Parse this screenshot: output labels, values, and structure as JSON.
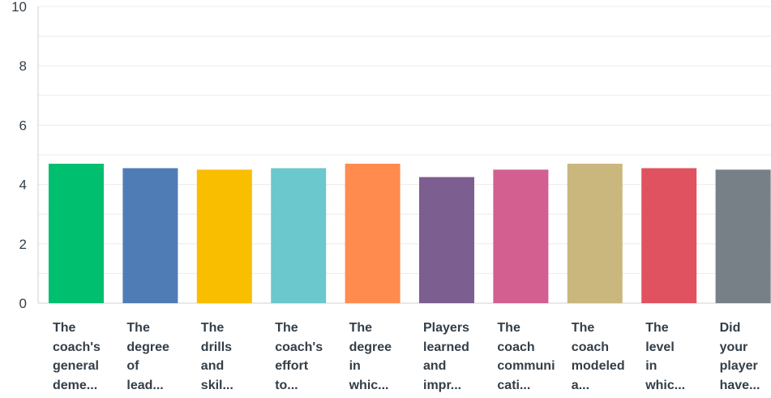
{
  "chart_data": {
    "type": "bar",
    "categories": [
      "The\ncoach's\ngeneral\ndeme...",
      "The\ndegree\nof\nlead...",
      "The\ndrills\nand\nskil...",
      "The\ncoach's\neffort\nto...",
      "The\ndegree\nin\nwhic...",
      "Players\nlearned\nand\nimpr...",
      "The\ncoach\ncommuni\ncati...",
      "The\ncoach\nmodeled\na...",
      "The\nlevel\nin\nwhic...",
      "Did\nyour\nplayer\nhave..."
    ],
    "values": [
      4.7,
      4.55,
      4.5,
      4.55,
      4.7,
      4.25,
      4.5,
      4.7,
      4.55,
      4.5
    ],
    "colors": [
      "#00bf6f",
      "#507cb6",
      "#f9be00",
      "#6bc8cd",
      "#ff8b4f",
      "#7d5e90",
      "#d25f90",
      "#c9b77d",
      "#e05260",
      "#768086"
    ],
    "yticks": [
      0,
      2,
      4,
      6,
      8,
      10
    ],
    "ylim": [
      0,
      10
    ],
    "grid": true,
    "title": "",
    "xlabel": "",
    "ylabel": ""
  }
}
